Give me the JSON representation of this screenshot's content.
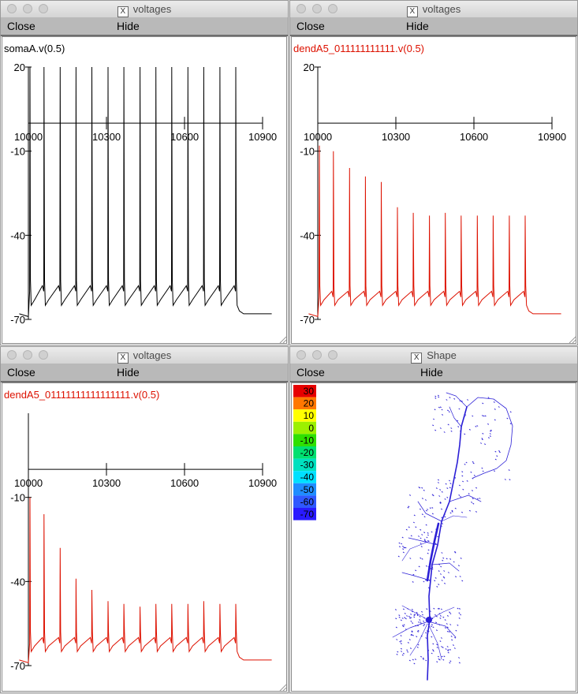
{
  "windows": [
    {
      "title": "voltages",
      "close_label": "Close",
      "hide_label": "Hide",
      "trace_label": "somaA.v(0.5)",
      "trace_color": "#000000"
    },
    {
      "title": "voltages",
      "close_label": "Close",
      "hide_label": "Hide",
      "trace_label": "dendA5_011111111111.v(0.5)",
      "trace_color": "#dd1100"
    },
    {
      "title": "voltages",
      "close_label": "Close",
      "hide_label": "Hide",
      "trace_label": "dendA5_01111111111111111.v(0.5)",
      "trace_color": "#dd1100"
    },
    {
      "title": "Shape",
      "close_label": "Close",
      "hide_label": "Hide"
    }
  ],
  "chart_data": [
    {
      "type": "line",
      "series": [
        {
          "name": "somaA.v(0.5)",
          "color": "#000000"
        }
      ],
      "x_ticks": [
        "10000",
        "10300",
        "10600",
        "10900"
      ],
      "y_ticks": [
        "20",
        "-10",
        "-40",
        "-70"
      ],
      "xlim": [
        10000,
        10900
      ],
      "ylim": [
        -70,
        20
      ],
      "spike_times": [
        10006,
        10060,
        10122,
        10183,
        10244,
        10306,
        10367,
        10429,
        10490,
        10551,
        10613,
        10674,
        10736,
        10797
      ],
      "spike_peaks": [
        20,
        20,
        20,
        20,
        20,
        20,
        20,
        20,
        20,
        20,
        20,
        20,
        20,
        20
      ],
      "ahp_trough": -65,
      "pre_spike": -58,
      "rest": -68
    },
    {
      "type": "line",
      "series": [
        {
          "name": "dendA5_011111111111.v(0.5)",
          "color": "#dd1100"
        }
      ],
      "x_ticks": [
        "10000",
        "10300",
        "10600",
        "10900"
      ],
      "y_ticks": [
        "20",
        "-10",
        "-40",
        "-70"
      ],
      "xlim": [
        10000,
        10900
      ],
      "ylim": [
        -70,
        20
      ],
      "spike_times": [
        10006,
        10060,
        10122,
        10183,
        10244,
        10306,
        10367,
        10429,
        10490,
        10551,
        10613,
        10674,
        10736,
        10797
      ],
      "spike_peaks": [
        -8,
        -10,
        -16,
        -19,
        -21,
        -30,
        -32,
        -33,
        -32,
        -33,
        -33,
        -33,
        -33,
        -33
      ],
      "ahp_trough": -65,
      "pre_spike": -60,
      "rest": -68
    },
    {
      "type": "line",
      "series": [
        {
          "name": "dendA5_01111111111111111.v(0.5)",
          "color": "#dd1100"
        }
      ],
      "x_ticks": [
        "10000",
        "10300",
        "10600",
        "10900"
      ],
      "y_ticks": [
        "-10",
        "-40",
        "-70"
      ],
      "xlim": [
        10000,
        10900
      ],
      "ylim": [
        -70,
        20
      ],
      "spike_times": [
        10006,
        10060,
        10122,
        10183,
        10244,
        10306,
        10367,
        10429,
        10490,
        10551,
        10613,
        10674,
        10736,
        10797
      ],
      "spike_peaks": [
        -10,
        -16,
        -28,
        -39,
        -43,
        -47,
        -48,
        -49,
        -48,
        -48,
        -48,
        -47,
        -48,
        -48
      ],
      "ahp_trough": -65,
      "pre_spike": -60,
      "rest": -68
    }
  ],
  "shape": {
    "colorbar": [
      {
        "label": "30",
        "color": "#e60000"
      },
      {
        "label": "20",
        "color": "#ff7700"
      },
      {
        "label": "10",
        "color": "#ffff00"
      },
      {
        "label": "0",
        "color": "#9cf000"
      },
      {
        "label": "-10",
        "color": "#2fe000"
      },
      {
        "label": "-20",
        "color": "#00e070"
      },
      {
        "label": "-30",
        "color": "#00e0bf"
      },
      {
        "label": "-40",
        "color": "#00e0ff"
      },
      {
        "label": "-50",
        "color": "#1f8dff"
      },
      {
        "label": "-60",
        "color": "#2f58ff"
      },
      {
        "label": "-70",
        "color": "#2a1aff"
      }
    ],
    "neuron_color": "#2b1fd6"
  }
}
